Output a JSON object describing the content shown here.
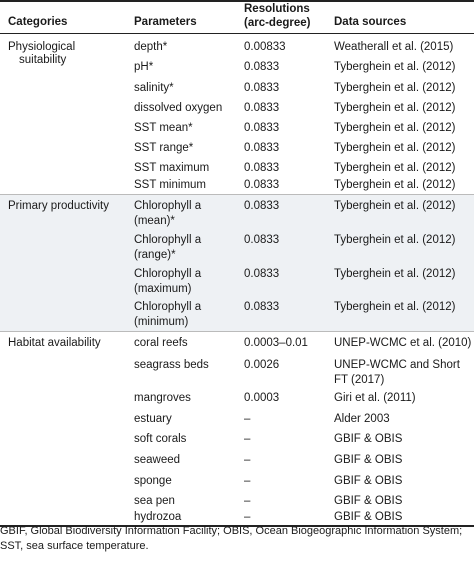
{
  "headers": {
    "categories": "Categories",
    "parameters": "Parameters",
    "resolutions_line1": "Resolutions",
    "resolutions_line2": "(arc-degree)",
    "data_sources": "Data sources"
  },
  "sections": [
    {
      "category": [
        "Physiological",
        "suitability"
      ],
      "rows": [
        {
          "parameter": [
            "depth*"
          ],
          "resolution": "0.00833",
          "source": [
            "Weatherall et al. (2015)"
          ]
        },
        {
          "parameter": [
            "pH*"
          ],
          "resolution": "0.0833",
          "source": [
            "Tyberghein et al. (2012)"
          ]
        },
        {
          "parameter": [
            "salinity*"
          ],
          "resolution": "0.0833",
          "source": [
            "Tyberghein et al. (2012)"
          ]
        },
        {
          "parameter": [
            "dissolved oxygen"
          ],
          "resolution": "0.0833",
          "source": [
            "Tyberghein et al. (2012)"
          ]
        },
        {
          "parameter": [
            "SST mean*"
          ],
          "resolution": "0.0833",
          "source": [
            "Tyberghein et al. (2012)"
          ]
        },
        {
          "parameter": [
            "SST range*"
          ],
          "resolution": "0.0833",
          "source": [
            "Tyberghein et al. (2012)"
          ]
        },
        {
          "parameter": [
            "SST maximum"
          ],
          "resolution": "0.0833",
          "source": [
            "Tyberghein et al. (2012)"
          ]
        },
        {
          "parameter": [
            "SST minimum"
          ],
          "resolution": "0.0833",
          "source": [
            "Tyberghein et al. (2012)"
          ]
        }
      ]
    },
    {
      "category": [
        "Primary productivity"
      ],
      "rows": [
        {
          "parameter": [
            "Chlorophyll a",
            "(mean)*"
          ],
          "resolution": "0.0833",
          "source": [
            "Tyberghein et al. (2012)"
          ]
        },
        {
          "parameter": [
            "Chlorophyll a",
            "(range)*"
          ],
          "resolution": "0.0833",
          "source": [
            "Tyberghein et al. (2012)"
          ]
        },
        {
          "parameter": [
            "Chlorophyll a",
            "(maximum)"
          ],
          "resolution": "0.0833",
          "source": [
            "Tyberghein et al. (2012)"
          ]
        },
        {
          "parameter": [
            "Chlorophyll a",
            "(minimum)"
          ],
          "resolution": "0.0833",
          "source": [
            "Tyberghein et al. (2012)"
          ]
        }
      ]
    },
    {
      "category": [
        "Habitat availability"
      ],
      "rows": [
        {
          "parameter": [
            "coral reefs"
          ],
          "resolution": "0.0003–0.01",
          "source": [
            "UNEP-WCMC et al. (2010)"
          ]
        },
        {
          "parameter": [
            "seagrass beds"
          ],
          "resolution": "0.0026",
          "source": [
            "UNEP-WCMC and Short",
            "FT (2017)"
          ]
        },
        {
          "parameter": [
            "mangroves"
          ],
          "resolution": "0.0003",
          "source": [
            "Giri et al. (2011)"
          ]
        },
        {
          "parameter": [
            "estuary"
          ],
          "resolution": "–",
          "source": [
            "Alder 2003"
          ]
        },
        {
          "parameter": [
            "soft corals"
          ],
          "resolution": "–",
          "source": [
            "GBIF & OBIS"
          ]
        },
        {
          "parameter": [
            "seaweed"
          ],
          "resolution": "–",
          "source": [
            "GBIF & OBIS"
          ]
        },
        {
          "parameter": [
            "sponge"
          ],
          "resolution": "–",
          "source": [
            "GBIF & OBIS"
          ]
        },
        {
          "parameter": [
            "sea pen"
          ],
          "resolution": "–",
          "source": [
            "GBIF & OBIS"
          ]
        },
        {
          "parameter": [
            "hydrozoa"
          ],
          "resolution": "–",
          "source": [
            "GBIF & OBIS"
          ]
        }
      ]
    }
  ],
  "footnote": "GBIF, Global Biodiversity Information Facility; OBIS, Ocean Biogeographic Information System; SST, sea surface temperature."
}
